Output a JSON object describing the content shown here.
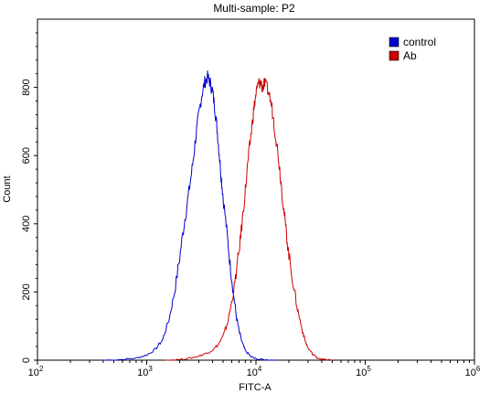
{
  "chart_data": {
    "type": "line",
    "title": "Multi-sample: P2",
    "xlabel": "FITC-A",
    "ylabel": "Count",
    "x_scale": "log",
    "xlim": [
      100,
      1000000
    ],
    "ylim": [
      0,
      1000
    ],
    "x_ticks": [
      {
        "value": 100,
        "base": "10",
        "exp": "2"
      },
      {
        "value": 1000,
        "base": "10",
        "exp": "3"
      },
      {
        "value": 10000,
        "base": "10",
        "exp": "4"
      },
      {
        "value": 100000,
        "base": "10",
        "exp": "5"
      },
      {
        "value": 1000000,
        "base": "10",
        "exp": "6"
      }
    ],
    "y_ticks": [
      0,
      200,
      400,
      600,
      800
    ],
    "grid": false,
    "legend_position": "top-right",
    "series": [
      {
        "name": "control",
        "color": "#0000cc",
        "points": [
          [
            400,
            0
          ],
          [
            600,
            2
          ],
          [
            800,
            6
          ],
          [
            1000,
            15
          ],
          [
            1200,
            32
          ],
          [
            1400,
            60
          ],
          [
            1600,
            120
          ],
          [
            1800,
            200
          ],
          [
            2000,
            300
          ],
          [
            2200,
            400
          ],
          [
            2400,
            480
          ],
          [
            2600,
            560
          ],
          [
            2800,
            650
          ],
          [
            3000,
            720
          ],
          [
            3200,
            780
          ],
          [
            3400,
            815
          ],
          [
            3600,
            830
          ],
          [
            3800,
            815
          ],
          [
            4000,
            790
          ],
          [
            4200,
            740
          ],
          [
            4400,
            680
          ],
          [
            4600,
            610
          ],
          [
            4800,
            540
          ],
          [
            5000,
            480
          ],
          [
            5400,
            380
          ],
          [
            5800,
            280
          ],
          [
            6200,
            200
          ],
          [
            6600,
            130
          ],
          [
            7000,
            85
          ],
          [
            7500,
            50
          ],
          [
            8000,
            28
          ],
          [
            9000,
            10
          ],
          [
            10000,
            4
          ],
          [
            12000,
            1
          ],
          [
            15000,
            0
          ]
        ]
      },
      {
        "name": "Ab",
        "color": "#cc0000",
        "points": [
          [
            1500,
            0
          ],
          [
            2000,
            2
          ],
          [
            2500,
            6
          ],
          [
            3000,
            12
          ],
          [
            3500,
            20
          ],
          [
            4000,
            30
          ],
          [
            4500,
            45
          ],
          [
            5000,
            70
          ],
          [
            5500,
            110
          ],
          [
            6000,
            170
          ],
          [
            6500,
            240
          ],
          [
            7000,
            320
          ],
          [
            7500,
            410
          ],
          [
            8000,
            500
          ],
          [
            8500,
            590
          ],
          [
            9000,
            660
          ],
          [
            9500,
            730
          ],
          [
            10000,
            780
          ],
          [
            10500,
            810
          ],
          [
            11000,
            815
          ],
          [
            11500,
            800
          ],
          [
            12000,
            810
          ],
          [
            13000,
            790
          ],
          [
            14000,
            740
          ],
          [
            15000,
            670
          ],
          [
            16000,
            600
          ],
          [
            17000,
            520
          ],
          [
            18000,
            440
          ],
          [
            19000,
            370
          ],
          [
            20000,
            310
          ],
          [
            22000,
            220
          ],
          [
            24000,
            150
          ],
          [
            26000,
            100
          ],
          [
            28000,
            60
          ],
          [
            30000,
            35
          ],
          [
            33000,
            18
          ],
          [
            36000,
            8
          ],
          [
            40000,
            3
          ],
          [
            45000,
            1
          ],
          [
            50000,
            0
          ]
        ]
      }
    ]
  }
}
